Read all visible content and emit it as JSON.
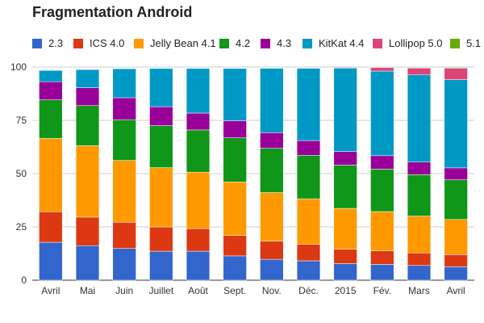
{
  "chart_data": {
    "type": "bar",
    "stacked": true,
    "title": "Fragmentation Android",
    "xlabel": "",
    "ylabel": "",
    "ylim": [
      0,
      100
    ],
    "yticks": [
      0,
      25,
      50,
      75,
      100
    ],
    "grid": true,
    "legend_position": "top",
    "categories": [
      "Avril",
      "Mai",
      "Juin",
      "Juillet",
      "Août",
      "Sept.",
      "Nov.",
      "Déc.",
      "2015",
      "Fév.",
      "Mars",
      "Avril"
    ],
    "series": [
      {
        "name": "2.3",
        "color": "#3366cc",
        "values": [
          17.8,
          16.2,
          14.9,
          13.6,
          13.6,
          11.4,
          9.8,
          9.1,
          7.8,
          7.4,
          6.9,
          6.3
        ]
      },
      {
        "name": "ICS 4.0",
        "color": "#dc3912",
        "values": [
          14.3,
          13.4,
          12.3,
          11.4,
          10.6,
          9.6,
          8.5,
          7.8,
          6.7,
          6.4,
          5.9,
          5.7
        ]
      },
      {
        "name": "Jelly Bean 4.1",
        "color": "#ff9900",
        "values": [
          34.4,
          33.5,
          29.0,
          27.8,
          26.5,
          25.1,
          22.8,
          21.3,
          19.2,
          18.4,
          17.3,
          16.5
        ]
      },
      {
        "name": "4.2",
        "color": "#109618",
        "values": [
          18.1,
          18.8,
          19.1,
          19.7,
          19.8,
          20.7,
          20.8,
          20.4,
          20.3,
          19.9,
          19.4,
          18.6
        ]
      },
      {
        "name": "4.3",
        "color": "#990099",
        "values": [
          8.5,
          8.4,
          10.3,
          8.9,
          7.9,
          8.0,
          7.3,
          6.9,
          6.4,
          6.3,
          5.9,
          5.6
        ]
      },
      {
        "name": "KitKat 4.4",
        "color": "#0099c6",
        "values": [
          5.3,
          8.5,
          13.6,
          17.9,
          20.9,
          24.5,
          30.2,
          33.9,
          39.1,
          39.7,
          40.9,
          41.4
        ]
      },
      {
        "name": "Lollipop 5.0",
        "color": "#dd4477",
        "values": [
          0,
          0,
          0,
          0,
          0,
          0,
          0,
          0,
          0.3,
          1.6,
          3.2,
          5.3
        ]
      },
      {
        "name": "5.1",
        "color": "#66aa00",
        "values": [
          0,
          0,
          0,
          0,
          0,
          0,
          0,
          0,
          0,
          0,
          0,
          0.4
        ]
      }
    ]
  }
}
